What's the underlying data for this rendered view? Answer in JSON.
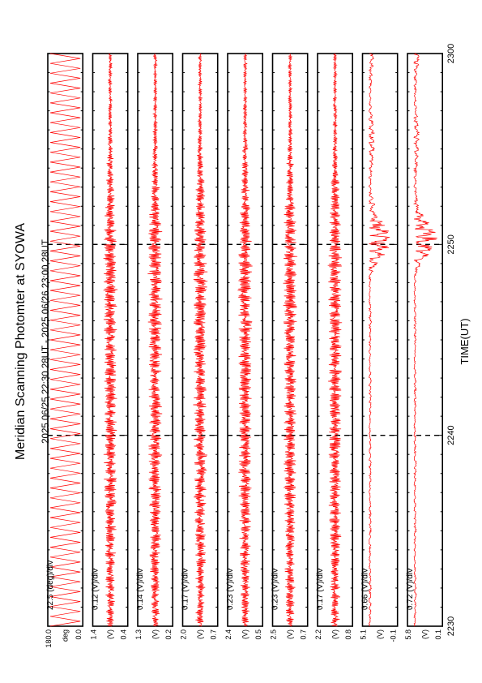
{
  "title": "Meridian Scanning Photomter at SYOWA",
  "period": "2025 06/25 22:30 28UT - 2025 06/26 23:00 28UT",
  "xlabel": "TIME(UT)",
  "colors": {
    "trace": "#ff0000",
    "axis": "#000000"
  },
  "chart_data": {
    "type": "line",
    "orientation": "rotated-90-ccw",
    "x_axis": {
      "range": [
        2230,
        2300
      ],
      "ticks": [
        "2230",
        "2240",
        "2250",
        "2300"
      ],
      "unit": "UT (HHMM)"
    },
    "panels": [
      {
        "name": "",
        "scale": "22.5 (deg)/div",
        "ytop": "180.0",
        "ybottom": "0.0",
        "unit": "deg",
        "style": "scan"
      },
      {
        "name": "",
        "scale": "0.12 (V)/div",
        "ytop": "1.4",
        "ybottom": "0.4",
        "unit": "(V)",
        "style": "signal"
      },
      {
        "name": "",
        "scale": "0.14 (V)/div",
        "ytop": "1.3",
        "ybottom": "0.2",
        "unit": "(V)",
        "style": "signal"
      },
      {
        "name": "",
        "scale": "0.17 (V)/div",
        "ytop": "2.0",
        "ybottom": "0.7",
        "unit": "(V)",
        "style": "signal"
      },
      {
        "name": "",
        "scale": "0.23 (V)/div",
        "ytop": "2.4",
        "ybottom": "0.5",
        "unit": "(V)",
        "style": "signal"
      },
      {
        "name": "",
        "scale": "0.23 (V)/div",
        "ytop": "2.5",
        "ybottom": "0.7",
        "unit": "(V)",
        "style": "signal"
      },
      {
        "name": "",
        "scale": "0.17 (V)/div",
        "ytop": "2.2",
        "ybottom": "0.8",
        "unit": "(V)",
        "style": "signal"
      },
      {
        "name": "",
        "scale": "0.66 (V)/div",
        "ytop": "5.1",
        "ybottom": "-0.1",
        "unit": "(V)",
        "style": "burst"
      },
      {
        "name": "",
        "scale": "0.72 (V)/div",
        "ytop": "5.8",
        "ybottom": "0.1",
        "unit": "(V)",
        "style": "burst"
      }
    ]
  }
}
